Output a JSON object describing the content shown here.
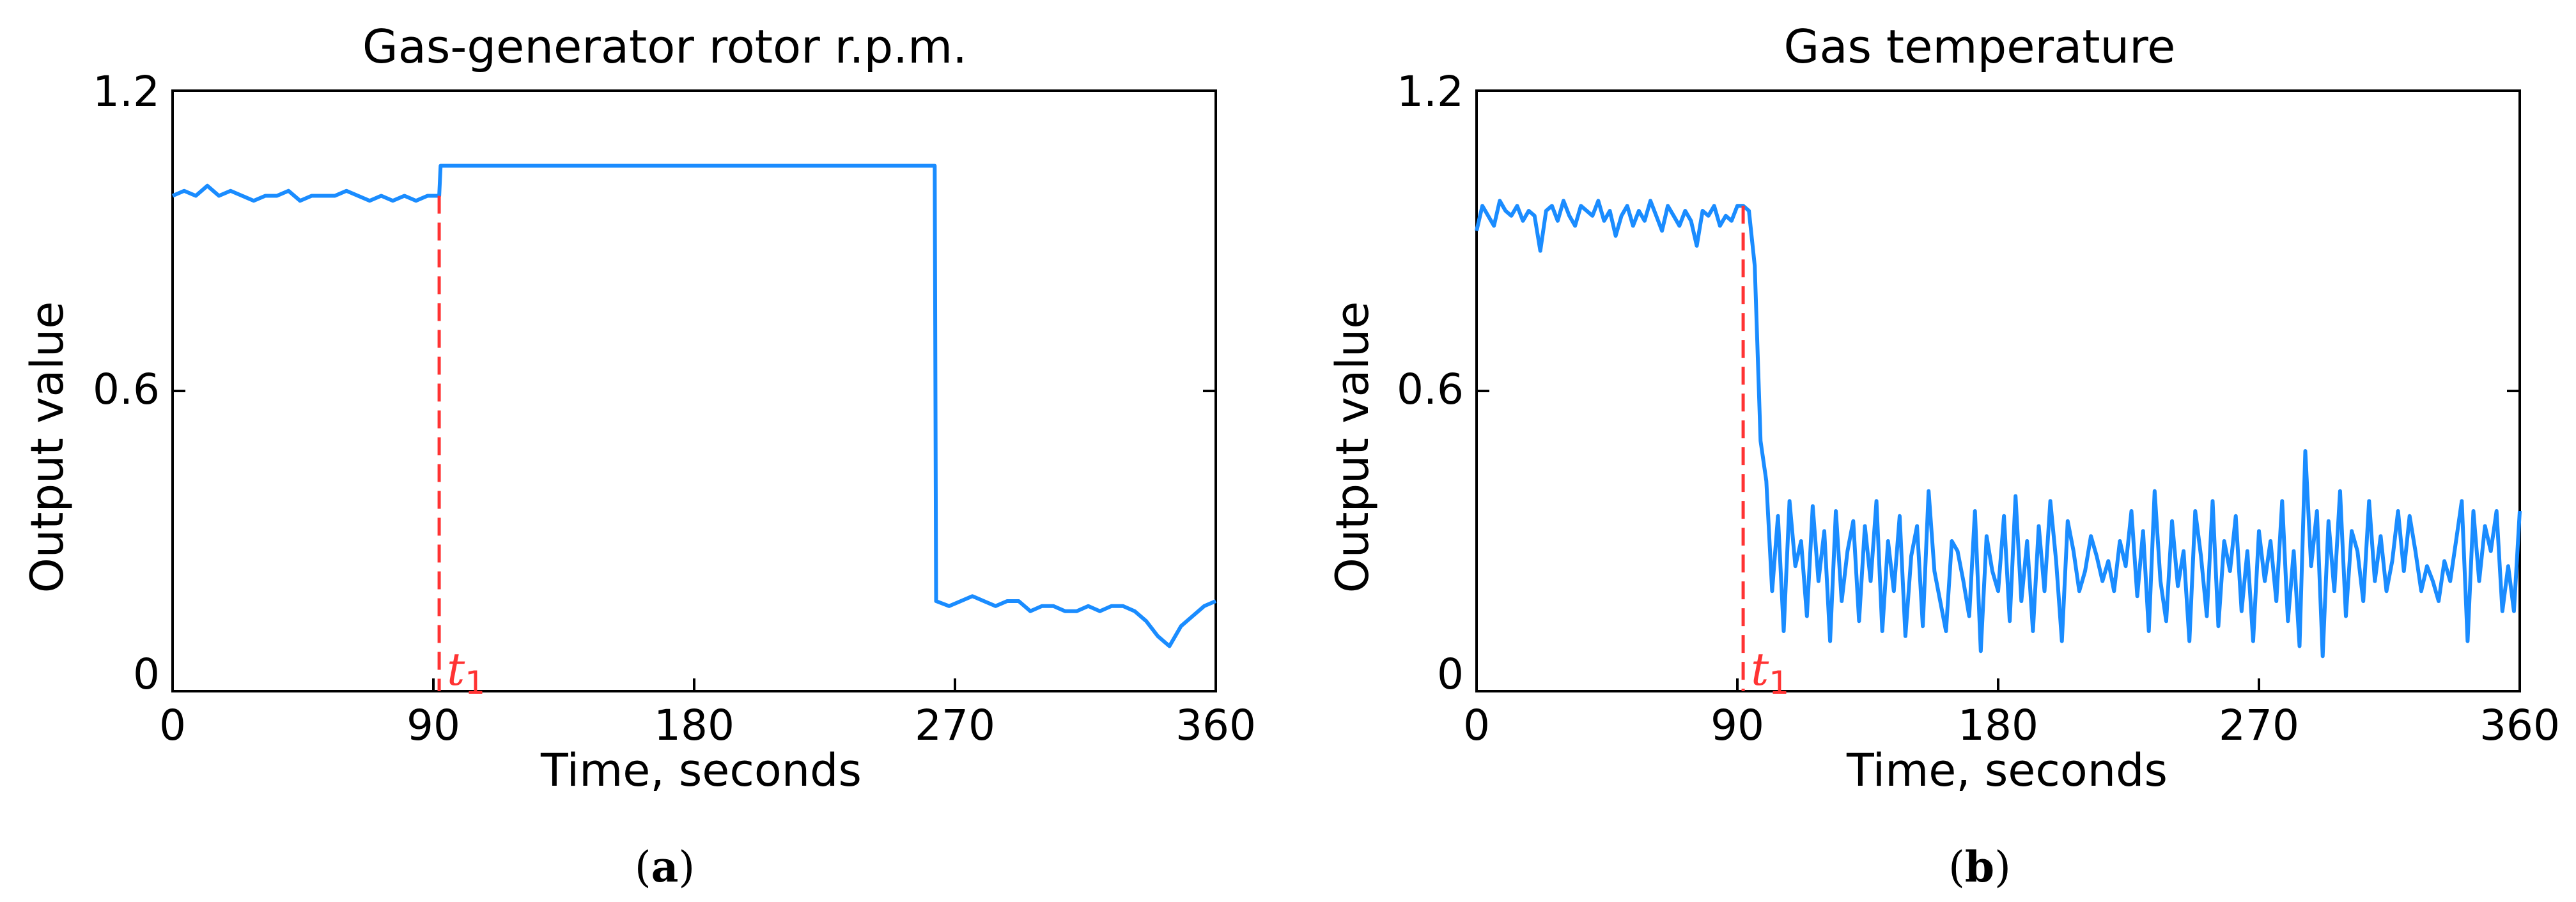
{
  "chart_data": [
    {
      "type": "line",
      "panel_label": "a",
      "title": "Gas-generator rotor r.p.m.",
      "xlabel": "Time, seconds",
      "ylabel": "Output value",
      "xlim": [
        0,
        360
      ],
      "ylim": [
        0,
        1.2
      ],
      "x_ticks": [
        0,
        90,
        180,
        270,
        360
      ],
      "x_tick_labels": [
        "0",
        "90",
        "180",
        "270",
        "360"
      ],
      "y_ticks": [
        0,
        0.6,
        1.2
      ],
      "y_tick_labels": [
        "0",
        "0.6",
        "1.2"
      ],
      "grid": false,
      "line_color": "#1a8cff",
      "marker": {
        "x": 92,
        "label": "t",
        "subscript": "1",
        "color": "#ff3333"
      },
      "series": [
        {
          "x": [
            0,
            4,
            8,
            12,
            16,
            20,
            24,
            28,
            32,
            36,
            40,
            44,
            48,
            52,
            56,
            60,
            64,
            68,
            72,
            76,
            80,
            84,
            88,
            92,
            92.5,
            140,
            200,
            260,
            263,
            263.5,
            268,
            272,
            276,
            280,
            284,
            288,
            292,
            296,
            300,
            304,
            308,
            312,
            316,
            320,
            324,
            328,
            332,
            336,
            340,
            344,
            348,
            352,
            356,
            360
          ],
          "values": [
            0.99,
            1.0,
            0.99,
            1.01,
            0.99,
            1.0,
            0.99,
            0.98,
            0.99,
            0.99,
            1.0,
            0.98,
            0.99,
            0.99,
            0.99,
            1.0,
            0.99,
            0.98,
            0.99,
            0.98,
            0.99,
            0.98,
            0.99,
            0.99,
            1.05,
            1.05,
            1.05,
            1.05,
            1.05,
            0.18,
            0.17,
            0.18,
            0.19,
            0.18,
            0.17,
            0.18,
            0.18,
            0.16,
            0.17,
            0.17,
            0.16,
            0.16,
            0.17,
            0.16,
            0.17,
            0.17,
            0.16,
            0.14,
            0.11,
            0.09,
            0.13,
            0.15,
            0.17,
            0.18
          ]
        }
      ]
    },
    {
      "type": "line",
      "panel_label": "b",
      "title": "Gas temperature",
      "xlabel": "Time, seconds",
      "ylabel": "Output value",
      "xlim": [
        0,
        360
      ],
      "ylim": [
        0,
        1.2
      ],
      "x_ticks": [
        0,
        90,
        180,
        270,
        360
      ],
      "x_tick_labels": [
        "0",
        "90",
        "180",
        "270",
        "360"
      ],
      "y_ticks": [
        0,
        0.6,
        1.2
      ],
      "y_tick_labels": [
        "0",
        "0.6",
        "1.2"
      ],
      "grid": false,
      "line_color": "#1a8cff",
      "marker": {
        "x": 92,
        "label": "t",
        "subscript": "1",
        "color": "#ff3333"
      },
      "series": [
        {
          "x": [
            0,
            2,
            4,
            6,
            8,
            10,
            12,
            14,
            16,
            18,
            20,
            22,
            24,
            26,
            28,
            30,
            32,
            34,
            36,
            38,
            40,
            42,
            44,
            46,
            48,
            50,
            52,
            54,
            56,
            58,
            60,
            62,
            64,
            66,
            68,
            70,
            72,
            74,
            76,
            78,
            80,
            82,
            84,
            86,
            88,
            90,
            92,
            94,
            96,
            98,
            100,
            102,
            104,
            106,
            108,
            110,
            112,
            114,
            116,
            118,
            120,
            122,
            124,
            126,
            128,
            130,
            132,
            134,
            136,
            138,
            140,
            142,
            144,
            146,
            148,
            150,
            152,
            154,
            156,
            158,
            160,
            162,
            164,
            166,
            168,
            170,
            172,
            174,
            176,
            178,
            180,
            182,
            184,
            186,
            188,
            190,
            192,
            194,
            196,
            198,
            200,
            202,
            204,
            206,
            208,
            210,
            212,
            214,
            216,
            218,
            220,
            222,
            224,
            226,
            228,
            230,
            232,
            234,
            236,
            238,
            240,
            242,
            244,
            246,
            248,
            250,
            252,
            254,
            256,
            258,
            260,
            262,
            264,
            266,
            268,
            270,
            272,
            274,
            276,
            278,
            280,
            282,
            284,
            286,
            288,
            290,
            292,
            294,
            296,
            298,
            300,
            302,
            304,
            306,
            308,
            310,
            312,
            314,
            316,
            318,
            320,
            322,
            324,
            326,
            328,
            330,
            332,
            334,
            336,
            338,
            340,
            342,
            344,
            346,
            348,
            350,
            352,
            354,
            356,
            358,
            360
          ],
          "values": [
            0.92,
            0.97,
            0.95,
            0.93,
            0.98,
            0.96,
            0.95,
            0.97,
            0.94,
            0.96,
            0.95,
            0.88,
            0.96,
            0.97,
            0.94,
            0.98,
            0.95,
            0.93,
            0.97,
            0.96,
            0.95,
            0.98,
            0.94,
            0.96,
            0.91,
            0.95,
            0.97,
            0.93,
            0.96,
            0.94,
            0.98,
            0.95,
            0.92,
            0.97,
            0.95,
            0.93,
            0.96,
            0.94,
            0.89,
            0.96,
            0.95,
            0.97,
            0.93,
            0.95,
            0.94,
            0.97,
            0.97,
            0.96,
            0.85,
            0.5,
            0.42,
            0.2,
            0.35,
            0.12,
            0.38,
            0.25,
            0.3,
            0.15,
            0.37,
            0.22,
            0.32,
            0.1,
            0.36,
            0.18,
            0.28,
            0.34,
            0.14,
            0.33,
            0.22,
            0.38,
            0.12,
            0.3,
            0.2,
            0.35,
            0.11,
            0.27,
            0.33,
            0.13,
            0.4,
            0.24,
            0.18,
            0.12,
            0.3,
            0.28,
            0.22,
            0.15,
            0.36,
            0.08,
            0.31,
            0.24,
            0.2,
            0.35,
            0.14,
            0.39,
            0.18,
            0.3,
            0.12,
            0.33,
            0.2,
            0.38,
            0.26,
            0.1,
            0.34,
            0.28,
            0.2,
            0.24,
            0.31,
            0.27,
            0.22,
            0.26,
            0.2,
            0.3,
            0.25,
            0.36,
            0.19,
            0.32,
            0.12,
            0.4,
            0.22,
            0.14,
            0.34,
            0.21,
            0.28,
            0.1,
            0.36,
            0.27,
            0.15,
            0.38,
            0.13,
            0.3,
            0.24,
            0.35,
            0.16,
            0.28,
            0.1,
            0.32,
            0.22,
            0.3,
            0.18,
            0.38,
            0.14,
            0.28,
            0.09,
            0.48,
            0.25,
            0.36,
            0.07,
            0.34,
            0.2,
            0.4,
            0.15,
            0.32,
            0.28,
            0.18,
            0.38,
            0.22,
            0.31,
            0.2,
            0.26,
            0.36,
            0.24,
            0.35,
            0.28,
            0.2,
            0.25,
            0.22,
            0.18,
            0.26,
            0.22,
            0.3,
            0.38,
            0.1,
            0.36,
            0.22,
            0.33,
            0.28,
            0.36,
            0.16,
            0.25,
            0.16,
            0.36
          ]
        }
      ]
    }
  ]
}
